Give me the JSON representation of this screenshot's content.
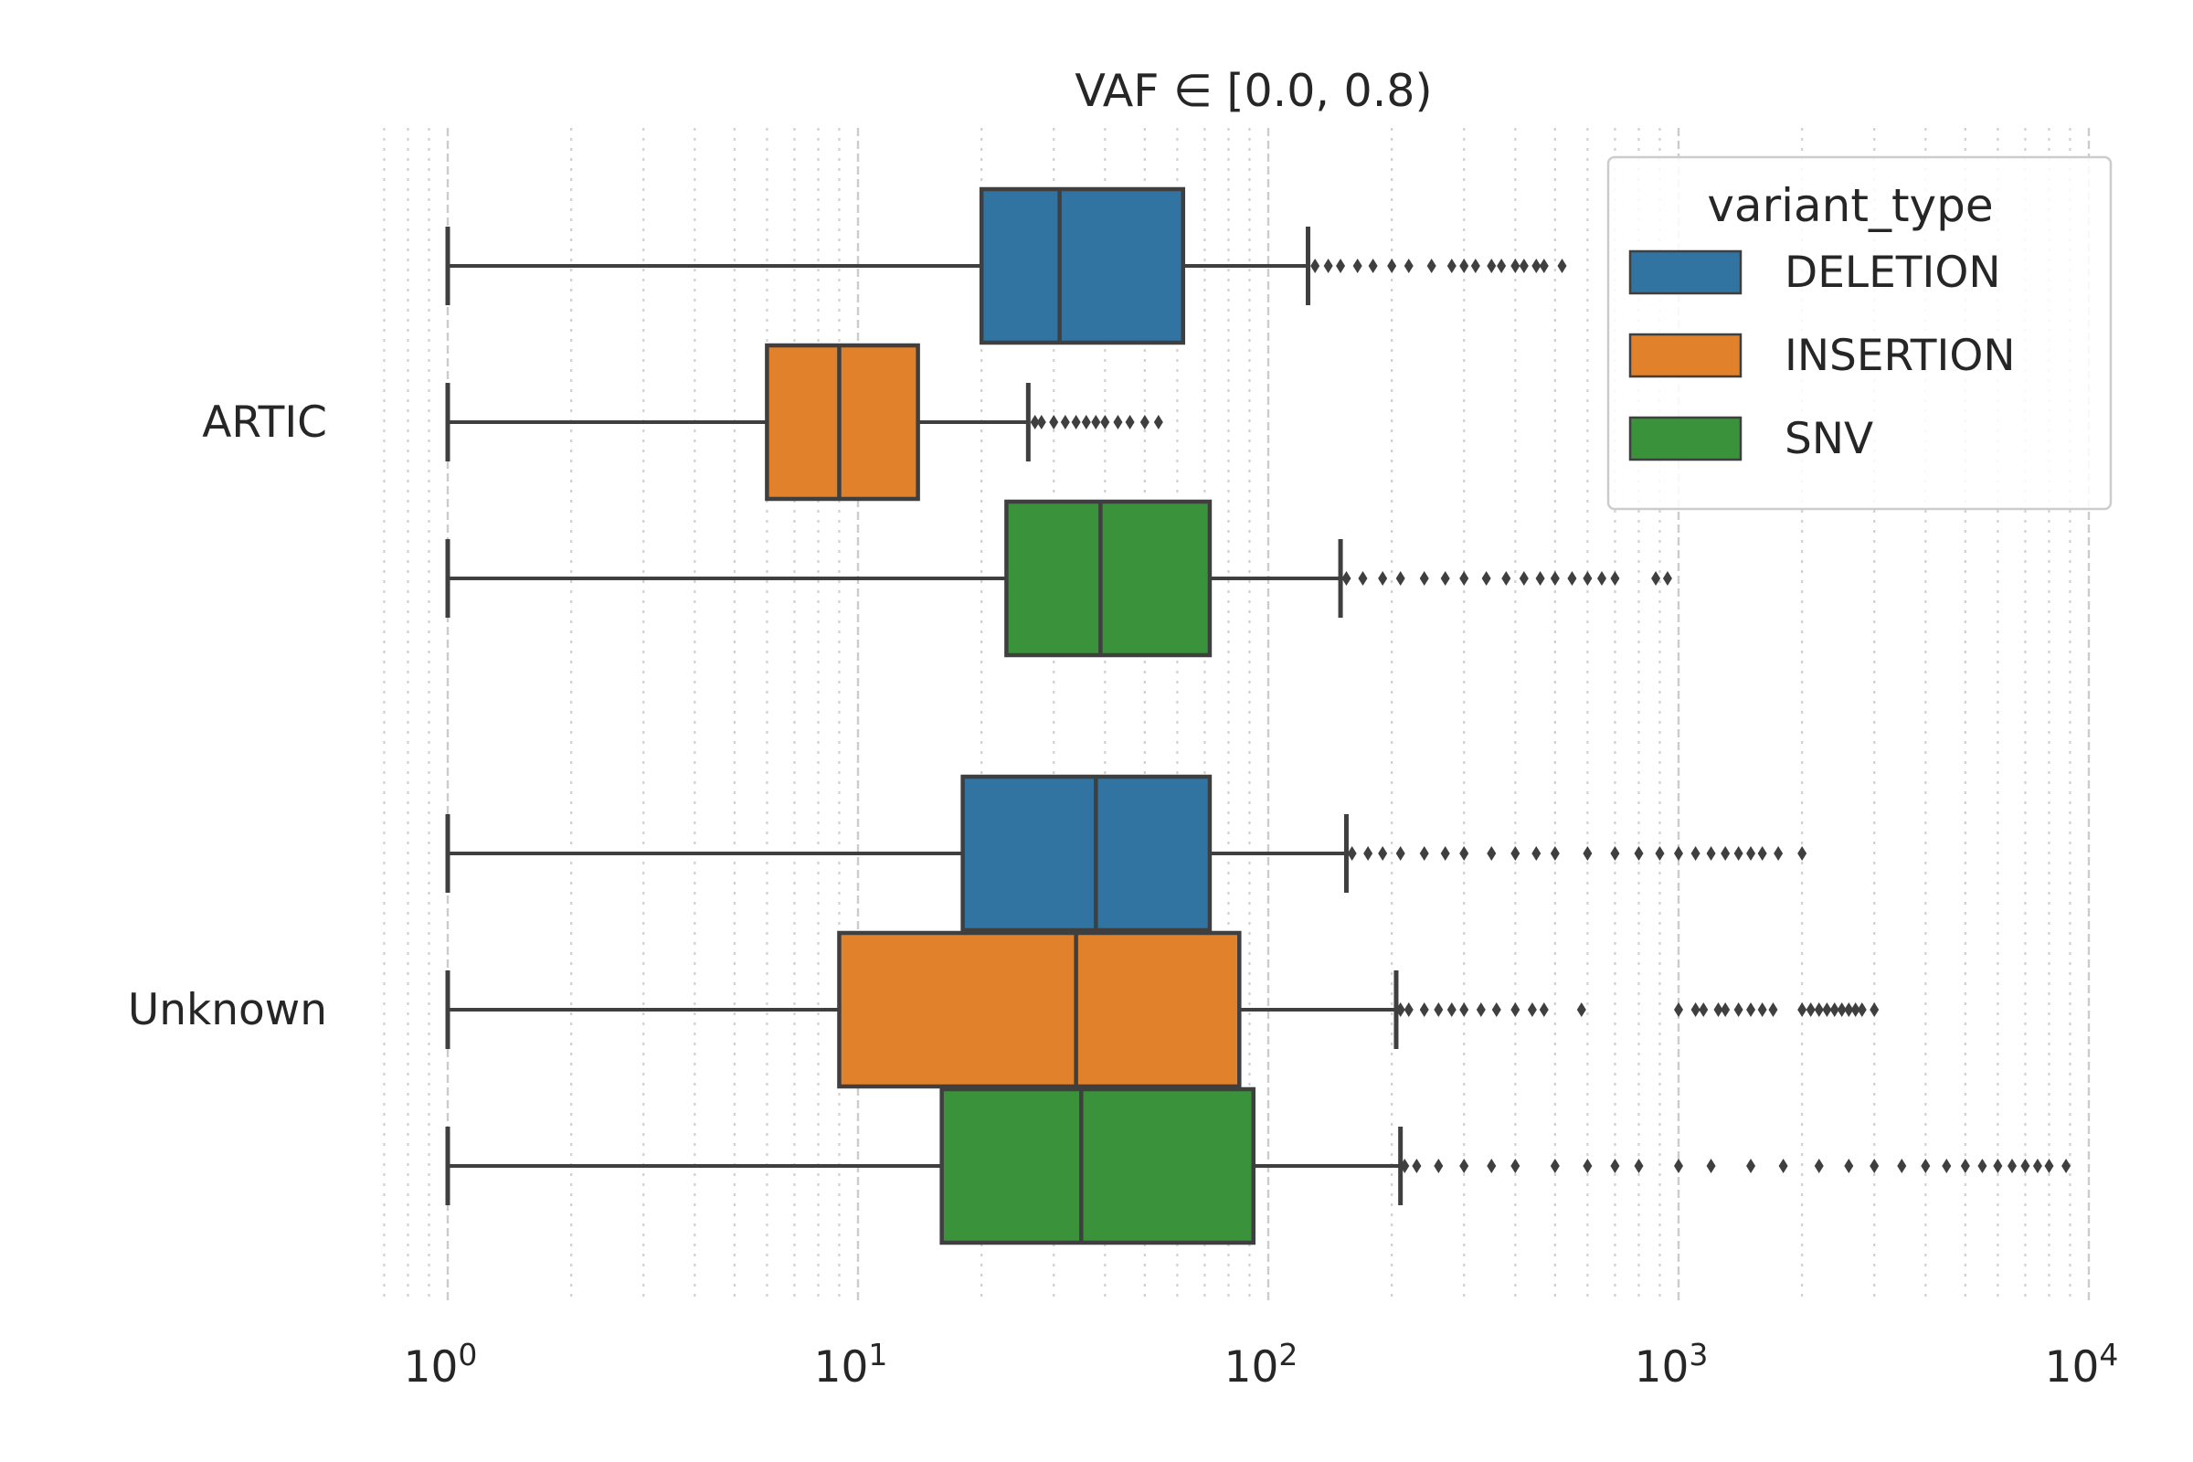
{
  "chart_data": {
    "type": "boxplot",
    "orientation": "horizontal",
    "title": "VAF ∈ [0.0, 0.8)",
    "xlabel": "",
    "ylabel": "",
    "x_scale": "log",
    "xlim": [
      0.7,
      10500
    ],
    "x_ticks": [
      {
        "value": 1,
        "base": "10",
        "exp": "0"
      },
      {
        "value": 10,
        "base": "10",
        "exp": "1"
      },
      {
        "value": 100,
        "base": "10",
        "exp": "2"
      },
      {
        "value": 1000,
        "base": "10",
        "exp": "3"
      },
      {
        "value": 10000,
        "base": "10",
        "exp": "4"
      }
    ],
    "grid": "vertical major dashed, minor dotted",
    "categories": [
      "ARTIC",
      "Unknown"
    ],
    "legend": {
      "title": "variant_type",
      "placement": "top-right"
    },
    "series": [
      {
        "name": "DELETION",
        "color": "#3274a1",
        "boxes": [
          {
            "category": "ARTIC",
            "whisker_low": 1,
            "q1": 20,
            "median": 31,
            "q3": 62,
            "whisker_high": 125,
            "outliers": [
              130,
              140,
              150,
              165,
              180,
              200,
              220,
              250,
              280,
              300,
              320,
              350,
              370,
              400,
              420,
              450,
              470,
              520
            ]
          },
          {
            "category": "Unknown",
            "whisker_low": 1,
            "q1": 18,
            "median": 38,
            "q3": 72,
            "whisker_high": 155,
            "outliers": [
              160,
              175,
              190,
              210,
              240,
              270,
              300,
              350,
              400,
              450,
              500,
              600,
              700,
              800,
              900,
              1000,
              1100,
              1200,
              1300,
              1400,
              1500,
              1600,
              1750,
              2000
            ]
          }
        ]
      },
      {
        "name": "INSERTION",
        "color": "#e1812c",
        "boxes": [
          {
            "category": "ARTIC",
            "whisker_low": 1,
            "q1": 6,
            "median": 9,
            "q3": 14,
            "whisker_high": 26,
            "outliers": [
              27,
              28,
              30,
              32,
              34,
              36,
              38,
              40,
              43,
              46,
              50,
              54
            ]
          },
          {
            "category": "Unknown",
            "whisker_low": 1,
            "q1": 9,
            "median": 34,
            "q3": 85,
            "whisker_high": 205,
            "outliers": [
              210,
              220,
              240,
              260,
              280,
              300,
              330,
              360,
              400,
              440,
              470,
              580,
              1000,
              1100,
              1150,
              1250,
              1300,
              1400,
              1500,
              1600,
              1700,
              2000,
              2100,
              2200,
              2300,
              2400,
              2500,
              2600,
              2700,
              2800,
              3000
            ]
          }
        ]
      },
      {
        "name": "SNV",
        "color": "#3a923a",
        "boxes": [
          {
            "category": "ARTIC",
            "whisker_low": 1,
            "q1": 23,
            "median": 39,
            "q3": 72,
            "whisker_high": 150,
            "outliers": [
              155,
              170,
              190,
              210,
              240,
              270,
              300,
              340,
              380,
              420,
              460,
              500,
              550,
              600,
              650,
              700,
              880,
              940
            ]
          },
          {
            "category": "Unknown",
            "whisker_low": 1,
            "q1": 16,
            "median": 35,
            "q3": 92,
            "whisker_high": 210,
            "outliers": [
              215,
              230,
              260,
              300,
              350,
              400,
              500,
              600,
              700,
              800,
              1000,
              1200,
              1500,
              1800,
              2200,
              2600,
              3000,
              3500,
              4000,
              4500,
              5000,
              5500,
              6000,
              6500,
              7000,
              7500,
              8000,
              8800
            ]
          }
        ]
      }
    ]
  }
}
